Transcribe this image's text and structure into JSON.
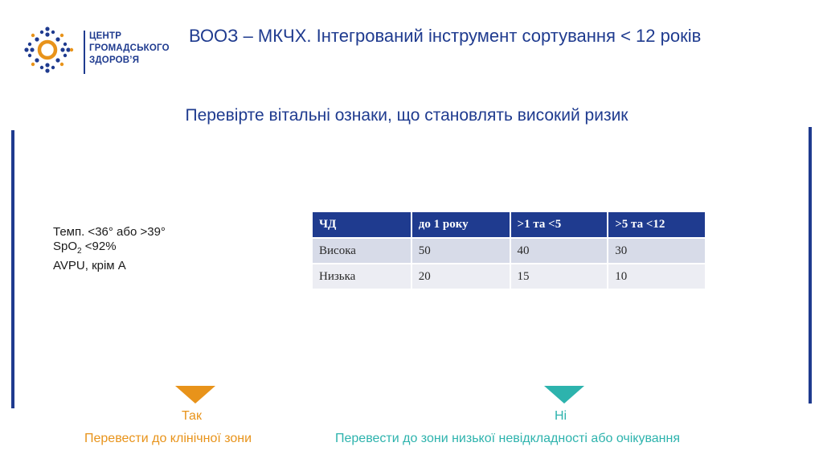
{
  "logo": {
    "lines": [
      "ЦЕНТР",
      "ГРОМАДСЬКОГО",
      "ЗДОРОВ’Я"
    ]
  },
  "slide": {
    "title": "ВООЗ – МКЧХ. Інтегрований інструмент сортування < 12 років",
    "subtitle": "Перевірте вітальні ознаки, що становлять високий ризик"
  },
  "vital_signs": {
    "temp": "Темп. <36° або >39°",
    "spo2_prefix": "SpO",
    "spo2_sub": "2",
    "spo2_suffix": " <92%",
    "avpu": "AVPU, крім А"
  },
  "rr_table": {
    "headers": [
      "ЧД",
      "до 1 року",
      ">1 та <5",
      ">5 та <12"
    ],
    "rows": [
      [
        "Висока",
        "50",
        "40",
        "30"
      ],
      [
        "Низька",
        "20",
        "15",
        "10"
      ]
    ]
  },
  "outcomes": {
    "yes_label": "Так",
    "yes_action": "Перевести до клінічної зони",
    "no_label": "Ні",
    "no_action": "Перевести до зони низької невідкладності або очікування"
  },
  "colors": {
    "brand_blue": "#1f3b8f",
    "yes_orange": "#e8931a",
    "no_teal": "#2db3ad"
  }
}
